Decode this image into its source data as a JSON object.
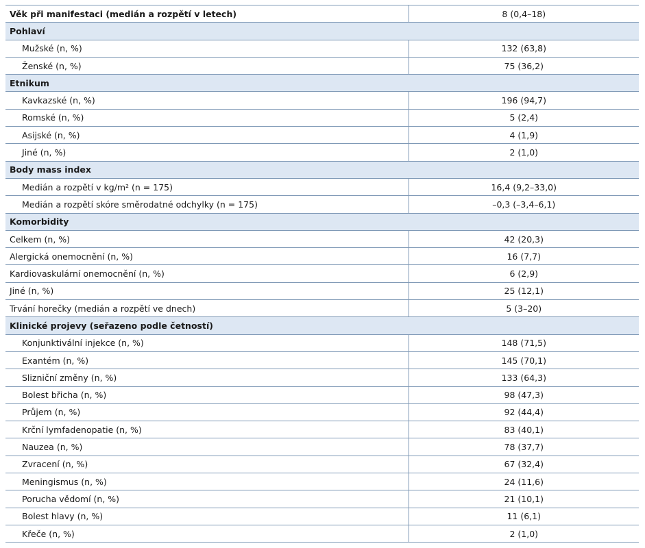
{
  "rows": [
    {
      "kind": "top",
      "label": "Věk při manifestaci (medián a rozpětí v letech)",
      "value": "8 (0,4–18)"
    },
    {
      "kind": "header",
      "label": "Pohlaví"
    },
    {
      "kind": "sub",
      "label": "Mužské (n, %)",
      "value": "132 (63,8)"
    },
    {
      "kind": "sub",
      "label": "Ženské (n, %)",
      "value": "75 (36,2)"
    },
    {
      "kind": "header",
      "label": "Etnikum"
    },
    {
      "kind": "sub",
      "label": "Kavkazské (n, %)",
      "value": "196 (94,7)"
    },
    {
      "kind": "sub",
      "label": "Romské (n, %)",
      "value": "5 (2,4)"
    },
    {
      "kind": "sub",
      "label": "Asijské (n, %)",
      "value": "4 (1,9)"
    },
    {
      "kind": "sub",
      "label": "Jiné (n, %)",
      "value": "2 (1,0)"
    },
    {
      "kind": "header",
      "label": "Body mass index"
    },
    {
      "kind": "sub",
      "label": "Medián a rozpětí v kg/m² (n = 175)",
      "value": "16,4 (9,2–33,0)"
    },
    {
      "kind": "sub",
      "label": "Medián a rozpětí skóre směrodatné odchylky (n = 175)",
      "value": "–0,3 (–3,4–6,1)"
    },
    {
      "kind": "header",
      "label": "Komorbidity"
    },
    {
      "kind": "plain",
      "label": "Celkem (n, %)",
      "value": "42 (20,3)"
    },
    {
      "kind": "plain",
      "label": "Alergická onemocnění (n, %)",
      "value": "16 (7,7)"
    },
    {
      "kind": "plain",
      "label": "Kardiovaskulární onemocnění (n, %)",
      "value": "6 (2,9)"
    },
    {
      "kind": "plain",
      "label": "Jiné (n, %)",
      "value": "25 (12,1)"
    },
    {
      "kind": "plain",
      "label": "Trvání horečky (medián a rozpětí ve dnech)",
      "value": "5 (3–20)"
    },
    {
      "kind": "header",
      "label": "Klinické projevy (seřazeno podle četností)"
    },
    {
      "kind": "sub",
      "label": "Konjunktivální injekce (n, %)",
      "value": "148 (71,5)"
    },
    {
      "kind": "sub",
      "label": "Exantém (n, %)",
      "value": "145 (70,1)"
    },
    {
      "kind": "sub",
      "label": "Slizniční změny (n, %)",
      "value": "133 (64,3)"
    },
    {
      "kind": "sub",
      "label": "Bolest břicha (n, %)",
      "value": "98 (47,3)"
    },
    {
      "kind": "sub",
      "label": "Průjem (n, %)",
      "value": "92 (44,4)"
    },
    {
      "kind": "sub",
      "label": "Krční lymfadenopatie (n, %)",
      "value": "83 (40,1)"
    },
    {
      "kind": "sub",
      "label": "Nauzea (n, %)",
      "value": "78 (37,7)"
    },
    {
      "kind": "sub",
      "label": "Zvracení (n, %)",
      "value": "67 (32,4)"
    },
    {
      "kind": "sub",
      "label": "Meningismus (n, %)",
      "value": "24 (11,6)"
    },
    {
      "kind": "sub",
      "label": "Porucha vědomí (n, %)",
      "value": "21 (10,1)"
    },
    {
      "kind": "sub",
      "label": "Bolest hlavy (n, %)",
      "value": "11 (6,1)"
    },
    {
      "kind": "sub",
      "label": "Křeče (n, %)",
      "value": "2 (1,0)"
    }
  ]
}
